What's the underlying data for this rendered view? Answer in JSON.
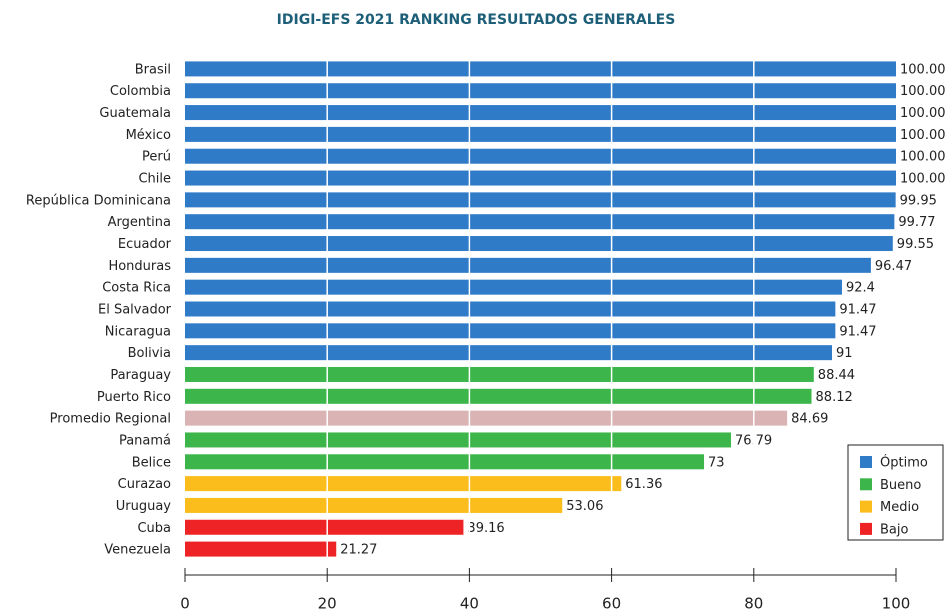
{
  "chart_data": {
    "type": "bar",
    "orientation": "horizontal",
    "title": "IDIGI-EFS 2021 RANKING RESULTADOS GENERALES",
    "categories": [
      "Brasil",
      "Colombia",
      "Guatemala",
      "México",
      "Perú",
      "Chile",
      "República Dominicana",
      "Argentina",
      "Ecuador",
      "Honduras",
      "Costa Rica",
      "El Salvador",
      "Nicaragua",
      "Bolivia",
      "Paraguay",
      "Puerto Rico",
      "Promedio Regional",
      "Panamá",
      "Belice",
      "Curazao",
      "Uruguay",
      "Cuba",
      "Venezuela"
    ],
    "values": [
      100,
      100,
      100,
      100,
      100,
      100,
      99.95,
      99.77,
      99.55,
      96.47,
      92.4,
      91.47,
      91.47,
      91,
      88.44,
      88.12,
      84.69,
      76.79,
      73,
      61.36,
      53.06,
      39.16,
      21.27
    ],
    "value_labels": [
      "100.00",
      "100.00",
      "100.00",
      "100.00",
      "100.00",
      "100.00",
      "99.95",
      "99.77",
      "99.55",
      "96.47",
      "92.4",
      "91.47",
      "91.47",
      "91",
      "88.44",
      "88.12",
      "84.69",
      "76.79",
      "73",
      "61.36",
      "53.06",
      "39.16",
      "21.27"
    ],
    "colors": [
      "#2f7bc8",
      "#2f7bc8",
      "#2f7bc8",
      "#2f7bc8",
      "#2f7bc8",
      "#2f7bc8",
      "#2f7bc8",
      "#2f7bc8",
      "#2f7bc8",
      "#2f7bc8",
      "#2f7bc8",
      "#2f7bc8",
      "#2f7bc8",
      "#2f7bc8",
      "#3cb54a",
      "#3cb54a",
      "#dab3b5",
      "#3cb54a",
      "#3cb54a",
      "#fbbd1c",
      "#fbbd1c",
      "#ee2326",
      "#ee2326"
    ],
    "legend": [
      {
        "name": "Óptimo",
        "color": "#2f7bc8"
      },
      {
        "name": "Bueno",
        "color": "#3cb54a"
      },
      {
        "name": "Medio",
        "color": "#fbbd1c"
      },
      {
        "name": "Bajo",
        "color": "#ee2326"
      }
    ],
    "legend_position": "lower right",
    "xlim": [
      0,
      100
    ],
    "xticks": [
      0,
      20,
      40,
      60,
      80,
      100
    ],
    "grid": true
  }
}
